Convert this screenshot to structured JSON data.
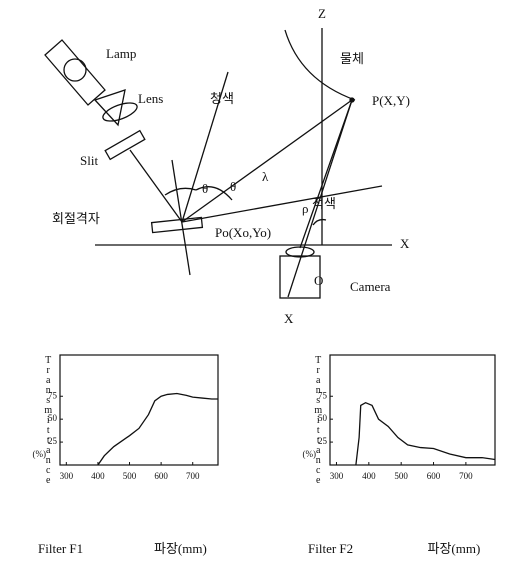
{
  "diagram": {
    "z_axis": "Z",
    "object": "물체",
    "lamp": "Lamp",
    "lens": "Lens",
    "blue": "청색",
    "point": "P(X,Y)",
    "theta_left": "θ",
    "theta_right": "θ",
    "lambda": "λ",
    "slit": "Slit",
    "red": "적색",
    "grating": "회절격자",
    "origin_point": "Po(Xo,Yo)",
    "x_axis": "X",
    "camera_origin": "O",
    "camera": "Camera",
    "x_axis_bottom": "X",
    "rho": "ρ"
  },
  "chart_data": [
    {
      "type": "line",
      "title": "Filter F1",
      "xlabel": "파장(mm)",
      "ylabel": "Transmittance",
      "yunit": "(%)",
      "x": [
        400,
        420,
        450,
        500,
        530,
        560,
        580,
        600,
        620,
        650,
        680,
        700,
        730,
        760,
        780
      ],
      "values": [
        0,
        10,
        20,
        32,
        40,
        55,
        70,
        75,
        77,
        78,
        76,
        74,
        73,
        72,
        72
      ],
      "color": "#111111",
      "xlim": [
        280,
        780
      ],
      "ylim": [
        0,
        120
      ],
      "xticks": [
        300,
        400,
        500,
        600,
        700
      ],
      "yticks": [
        25,
        50,
        75
      ]
    },
    {
      "type": "line",
      "title": "Filter F2",
      "xlabel": "파장(mm)",
      "ylabel": "Transmittance",
      "yunit": "(%)",
      "x": [
        360,
        370,
        375,
        390,
        410,
        430,
        460,
        490,
        520,
        560,
        600,
        650,
        700,
        750,
        790
      ],
      "values": [
        0,
        30,
        65,
        68,
        65,
        50,
        42,
        30,
        22,
        19,
        18,
        12,
        8,
        8,
        6
      ],
      "color": "#111111",
      "xlim": [
        280,
        790
      ],
      "ylim": [
        0,
        120
      ],
      "xticks": [
        300,
        400,
        500,
        600,
        700
      ],
      "yticks": [
        25,
        50,
        75
      ]
    }
  ]
}
